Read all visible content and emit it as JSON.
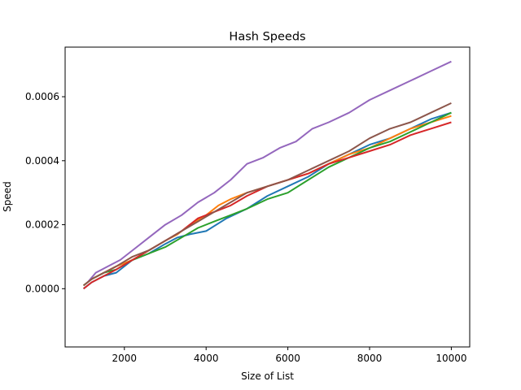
{
  "chart_data": {
    "type": "line",
    "title": "Hash Speeds",
    "xlabel": "Size of List",
    "ylabel": "Speed",
    "xlim": [
      550,
      10450
    ],
    "ylim": [
      -0.000182,
      0.000755
    ],
    "xticks": [
      2000,
      4000,
      6000,
      8000,
      10000
    ],
    "xtick_labels": [
      "2000",
      "4000",
      "6000",
      "8000",
      "10000"
    ],
    "yticks": [
      0.0,
      0.0002,
      0.0004,
      0.0006
    ],
    "ytick_labels": [
      "0.0000",
      "0.0002",
      "0.0004",
      "0.0006"
    ],
    "grid": false,
    "legend": "none",
    "series": [
      {
        "color": "#1f77b4",
        "x": [
          1000,
          1200,
          1500,
          1800,
          2200,
          2600,
          3000,
          3300,
          3600,
          4000,
          4500,
          5000,
          5500,
          6000,
          6500,
          7000,
          7500,
          8000,
          8500,
          9000,
          9500,
          10000
        ],
        "y": [
          0.0,
          2e-05,
          4e-05,
          5e-05,
          9e-05,
          0.00011,
          0.00014,
          0.00016,
          0.00017,
          0.00018,
          0.00022,
          0.00025,
          0.00029,
          0.00032,
          0.00035,
          0.00039,
          0.00042,
          0.00045,
          0.00047,
          0.0005,
          0.00053,
          0.00055
        ]
      },
      {
        "color": "#ff7f0e",
        "x": [
          1000,
          1200,
          1500,
          1800,
          2200,
          2600,
          3000,
          3300,
          3600,
          4000,
          4300,
          4600,
          5000,
          5500,
          6000,
          6500,
          7000,
          7500,
          8000,
          8500,
          9000,
          9500,
          10000
        ],
        "y": [
          1e-05,
          3e-05,
          5e-05,
          7e-05,
          9e-05,
          0.00012,
          0.00015,
          0.00017,
          0.0002,
          0.00023,
          0.00026,
          0.00028,
          0.0003,
          0.00032,
          0.00034,
          0.00036,
          0.00039,
          0.00042,
          0.00044,
          0.00047,
          0.0005,
          0.00052,
          0.00054
        ]
      },
      {
        "color": "#2ca02c",
        "x": [
          1000,
          1200,
          1500,
          1800,
          2200,
          2600,
          3000,
          3400,
          3800,
          4200,
          4600,
          5000,
          5500,
          6000,
          6500,
          7000,
          7500,
          8000,
          8500,
          9000,
          9500,
          10000
        ],
        "y": [
          1e-05,
          3e-05,
          5e-05,
          6e-05,
          9e-05,
          0.00011,
          0.00013,
          0.00016,
          0.00019,
          0.00021,
          0.00023,
          0.00025,
          0.00028,
          0.0003,
          0.00034,
          0.00038,
          0.00041,
          0.00044,
          0.00046,
          0.00049,
          0.00052,
          0.00055
        ]
      },
      {
        "color": "#d62728",
        "x": [
          1000,
          1200,
          1500,
          1800,
          2200,
          2600,
          3000,
          3400,
          3800,
          4200,
          4600,
          5000,
          5500,
          6000,
          6500,
          7000,
          7500,
          8000,
          8500,
          9000,
          9500,
          10000
        ],
        "y": [
          0.0,
          2e-05,
          4e-05,
          6e-05,
          9e-05,
          0.00012,
          0.00015,
          0.00018,
          0.00022,
          0.00024,
          0.00026,
          0.00029,
          0.00032,
          0.00034,
          0.00036,
          0.00039,
          0.00041,
          0.00043,
          0.00045,
          0.00048,
          0.0005,
          0.00052
        ]
      },
      {
        "color": "#9467bd",
        "x": [
          1100,
          1300,
          1600,
          1900,
          2300,
          2600,
          3000,
          3400,
          3800,
          4200,
          4600,
          5000,
          5400,
          5800,
          6200,
          6600,
          7000,
          7500,
          8000,
          8500,
          9000,
          9500,
          10000
        ],
        "y": [
          2e-05,
          5e-05,
          7e-05,
          9e-05,
          0.00013,
          0.00016,
          0.0002,
          0.00023,
          0.00027,
          0.0003,
          0.00034,
          0.00039,
          0.00041,
          0.00044,
          0.00046,
          0.0005,
          0.00052,
          0.00055,
          0.00059,
          0.00062,
          0.00065,
          0.00068,
          0.00071
        ]
      },
      {
        "color": "#8c564b",
        "x": [
          1000,
          1200,
          1500,
          1800,
          2200,
          2600,
          3000,
          3400,
          3800,
          4200,
          4600,
          5000,
          5500,
          6000,
          6500,
          7000,
          7500,
          8000,
          8500,
          9000,
          9500,
          10000
        ],
        "y": [
          1e-05,
          3e-05,
          5e-05,
          7e-05,
          0.0001,
          0.00012,
          0.00015,
          0.00018,
          0.00021,
          0.00024,
          0.00027,
          0.0003,
          0.00032,
          0.00034,
          0.00037,
          0.0004,
          0.00043,
          0.00047,
          0.0005,
          0.00052,
          0.00055,
          0.00058
        ]
      }
    ]
  }
}
